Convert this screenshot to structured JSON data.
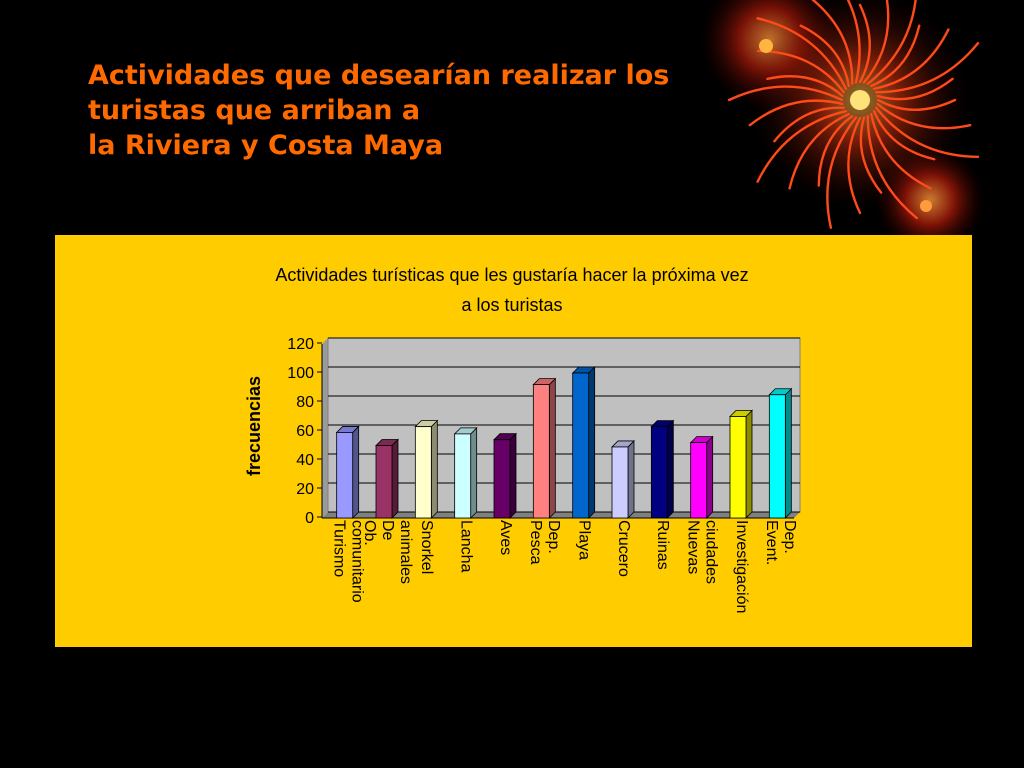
{
  "slide": {
    "title_lines": [
      "Actividades que desearían realizar los",
      "turistas que arriban a",
      "la Riviera y Costa Maya"
    ]
  },
  "colors": {
    "background": "#000000",
    "title": "#ff6a00",
    "panel": "#ffcc00",
    "plot_area": "#c0c0c0"
  },
  "chart_data": {
    "type": "bar",
    "title_lines": [
      "Actividades turísticas que les gustaría hacer la próxima vez",
      "a los turistas"
    ],
    "xlabel": "",
    "ylabel": "frecuencias",
    "ylim": [
      0,
      120
    ],
    "yticks": [
      0,
      20,
      40,
      60,
      80,
      100,
      120
    ],
    "grid": true,
    "legend": "none",
    "categories": [
      "Turismo comunitario",
      "Ob. De animales",
      "Snorkel",
      "Lancha",
      "Aves",
      "Pesca Dep.",
      "Playa",
      "Crucero",
      "Ruinas",
      "Nuevas ciudades",
      "Investigación",
      "Event. Dep."
    ],
    "values": [
      59,
      50,
      63,
      58,
      54,
      92,
      100,
      49,
      63,
      52,
      70,
      85
    ],
    "bar_colors": [
      "#9999ff",
      "#993366",
      "#ffffcc",
      "#ccffff",
      "#660066",
      "#ff8080",
      "#0066cc",
      "#ccccff",
      "#000080",
      "#ff00ff",
      "#ffff00",
      "#00ffff"
    ]
  }
}
